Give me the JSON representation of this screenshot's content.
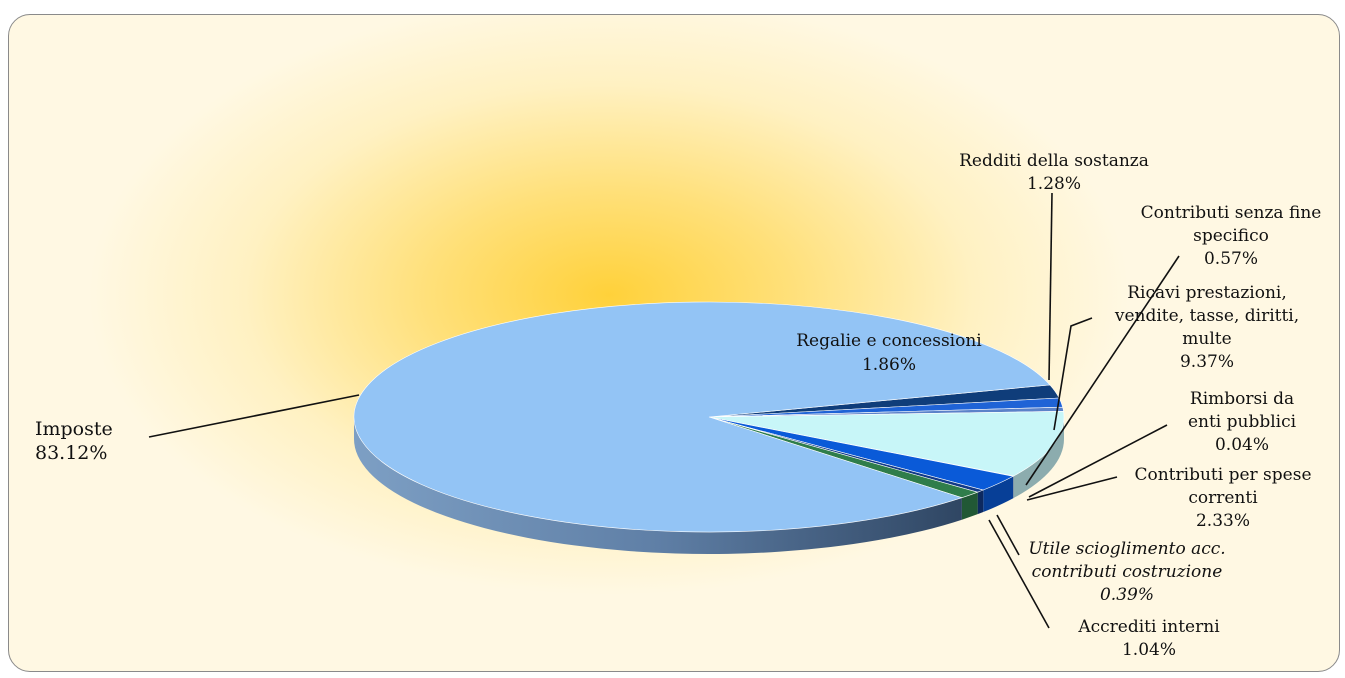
{
  "chart_data": {
    "type": "pie",
    "title": "",
    "slices": [
      {
        "label": "Imposte",
        "value": "83.12%",
        "share": 83.12,
        "color": "#93c4f5",
        "italic": false
      },
      {
        "label": "Regalie e concessioni",
        "value": "1.86%",
        "share": 1.86,
        "color": "#0f3d7a",
        "italic": false
      },
      {
        "label": "Redditi della sostanza",
        "value": "1.28%",
        "share": 1.28,
        "color": "#1f63d6",
        "italic": false
      },
      {
        "label": "Contributi senza fine specifico",
        "value": "0.57%",
        "share": 0.57,
        "color": "#5b82c9",
        "italic": false
      },
      {
        "label": "Ricavi prestazioni, vendite, tasse, diritti, multe",
        "value": "9.37%",
        "share": 9.37,
        "color": "#c8f6f8",
        "italic": false
      },
      {
        "label": "Rimborsi da enti pubblici",
        "value": "0.04%",
        "share": 0.04,
        "color": "#9ab0c8",
        "italic": false
      },
      {
        "label": "Contributi per spese correnti",
        "value": "2.33%",
        "share": 2.33,
        "color": "#0a5ad8",
        "italic": false
      },
      {
        "label": "Utile scioglimento acc. contributi costruzione",
        "value": "0.39%",
        "share": 0.39,
        "color": "#123a88",
        "italic": true
      },
      {
        "label": "Accrediti interni",
        "value": "1.04%",
        "share": 1.04,
        "color": "#2f7d4b",
        "italic": false
      }
    ],
    "labels_lines": {
      "imposte": [
        "Imposte",
        "83.12%"
      ],
      "regalie": [
        "Regalie e concessioni",
        "1.86%"
      ],
      "redditi": [
        "Redditi della sostanza",
        "1.28%"
      ],
      "contributi_senza": [
        "Contributi senza fine",
        "specifico",
        "0.57%"
      ],
      "ricavi": [
        "Ricavi prestazioni,",
        "vendite, tasse, diritti,",
        "multe",
        "9.37%"
      ],
      "rimborsi": [
        "Rimborsi da",
        "enti pubblici",
        "0.04%"
      ],
      "contributi_spese": [
        "Contributi per spese",
        "correnti",
        "2.33%"
      ],
      "utile": [
        "Utile scioglimento acc.",
        "contributi costruzione",
        "0.39%"
      ],
      "accrediti": [
        "Accrediti interni",
        "1.04%"
      ]
    }
  }
}
